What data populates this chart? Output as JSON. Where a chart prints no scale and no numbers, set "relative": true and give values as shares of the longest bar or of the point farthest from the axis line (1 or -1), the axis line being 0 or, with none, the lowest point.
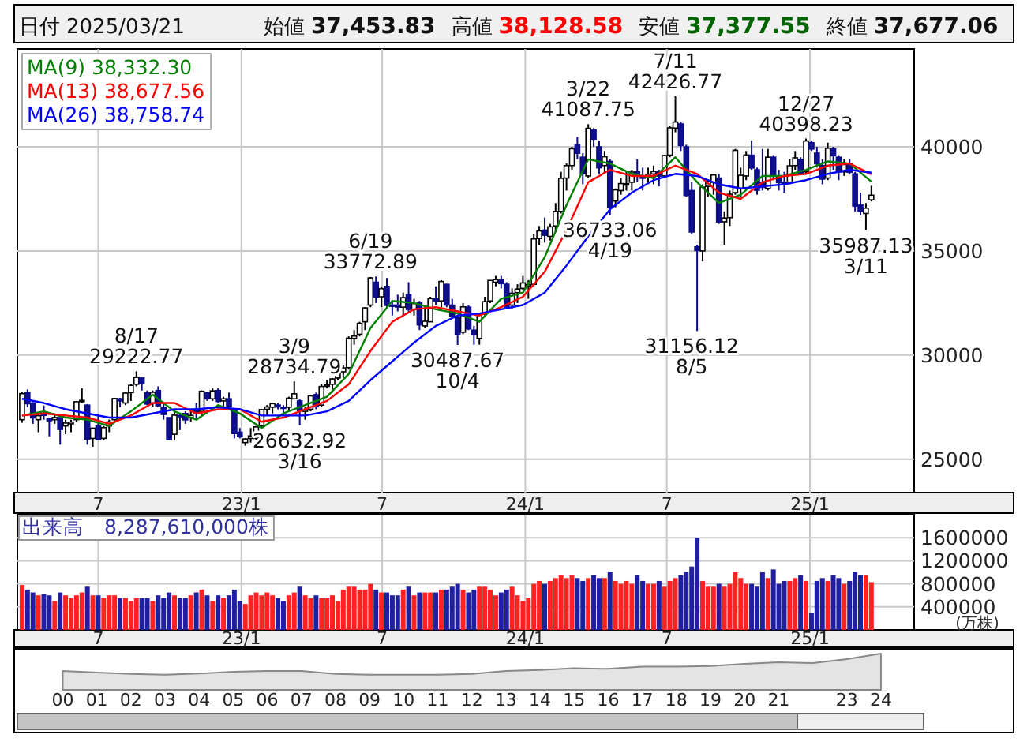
{
  "chart_data": [
    {
      "type": "candlestick",
      "xlim": [
        "2022-03-19",
        "2025-05-15"
      ],
      "ylim": [
        23400,
        44700
      ],
      "yticks": [
        25000,
        30000,
        35000,
        40000
      ],
      "grid": true,
      "legend": "top left",
      "xticks": [
        {
          "value": "2022-07-01",
          "label": "7"
        },
        {
          "value": "2023-01-01",
          "label": "23/1"
        },
        {
          "value": "2023-07-01",
          "label": "7"
        },
        {
          "value": "2024-01-01",
          "label": "24/1"
        },
        {
          "value": "2024-07-01",
          "label": "7"
        },
        {
          "value": "2025-01-01",
          "label": "25/1"
        }
      ],
      "x": [
        "2022-03-25",
        "2022-04-01",
        "2022-04-08",
        "2022-04-15",
        "2022-04-22",
        "2022-04-29",
        "2022-05-06",
        "2022-05-13",
        "2022-05-20",
        "2022-05-27",
        "2022-06-03",
        "2022-06-10",
        "2022-06-17",
        "2022-06-24",
        "2022-07-01",
        "2022-07-08",
        "2022-07-15",
        "2022-07-22",
        "2022-07-29",
        "2022-08-05",
        "2022-08-12",
        "2022-08-19",
        "2022-08-26",
        "2022-09-02",
        "2022-09-09",
        "2022-09-16",
        "2022-09-23",
        "2022-09-30",
        "2022-10-07",
        "2022-10-14",
        "2022-10-21",
        "2022-10-28",
        "2022-11-04",
        "2022-11-11",
        "2022-11-18",
        "2022-11-25",
        "2022-12-02",
        "2022-12-09",
        "2022-12-16",
        "2022-12-23",
        "2022-12-30",
        "2023-01-06",
        "2023-01-13",
        "2023-01-20",
        "2023-01-27",
        "2023-02-03",
        "2023-02-10",
        "2023-02-17",
        "2023-02-24",
        "2023-03-03",
        "2023-03-10",
        "2023-03-17",
        "2023-03-24",
        "2023-03-31",
        "2023-04-07",
        "2023-04-14",
        "2023-04-21",
        "2023-04-28",
        "2023-05-05",
        "2023-05-12",
        "2023-05-19",
        "2023-05-26",
        "2023-06-02",
        "2023-06-09",
        "2023-06-16",
        "2023-06-23",
        "2023-06-30",
        "2023-07-07",
        "2023-07-14",
        "2023-07-21",
        "2023-07-28",
        "2023-08-04",
        "2023-08-11",
        "2023-08-18",
        "2023-08-25",
        "2023-09-01",
        "2023-09-08",
        "2023-09-15",
        "2023-09-22",
        "2023-09-29",
        "2023-10-06",
        "2023-10-13",
        "2023-10-20",
        "2023-10-27",
        "2023-11-03",
        "2023-11-10",
        "2023-11-17",
        "2023-11-24",
        "2023-12-01",
        "2023-12-08",
        "2023-12-15",
        "2023-12-22",
        "2023-12-29",
        "2024-01-05",
        "2024-01-12",
        "2024-01-19",
        "2024-01-26",
        "2024-02-02",
        "2024-02-09",
        "2024-02-16",
        "2024-02-23",
        "2024-03-01",
        "2024-03-08",
        "2024-03-15",
        "2024-03-22",
        "2024-03-29",
        "2024-04-05",
        "2024-04-12",
        "2024-04-19",
        "2024-04-26",
        "2024-05-03",
        "2024-05-10",
        "2024-05-17",
        "2024-05-24",
        "2024-05-31",
        "2024-06-07",
        "2024-06-14",
        "2024-06-21",
        "2024-06-28",
        "2024-07-05",
        "2024-07-12",
        "2024-07-19",
        "2024-07-26",
        "2024-08-02",
        "2024-08-09",
        "2024-08-16",
        "2024-08-23",
        "2024-08-30",
        "2024-09-06",
        "2024-09-13",
        "2024-09-20",
        "2024-09-27",
        "2024-10-04",
        "2024-10-11",
        "2024-10-18",
        "2024-10-25",
        "2024-11-01",
        "2024-11-08",
        "2024-11-15",
        "2024-11-22",
        "2024-11-29",
        "2024-12-06",
        "2024-12-13",
        "2024-12-20",
        "2024-12-27",
        "2025-01-03",
        "2025-01-10",
        "2025-01-17",
        "2025-01-24",
        "2025-01-31",
        "2025-02-07",
        "2025-02-14",
        "2025-02-21",
        "2025-02-28",
        "2025-03-07",
        "2025-03-14",
        "2025-03-21"
      ],
      "ohlc": [
        [
          26900,
          28250,
          26750,
          28150
        ],
        [
          28200,
          28350,
          27500,
          27666
        ],
        [
          27700,
          27750,
          26700,
          26985
        ],
        [
          26900,
          27200,
          26300,
          27093
        ],
        [
          27200,
          27580,
          26900,
          27105
        ],
        [
          26950,
          27000,
          26100,
          26848
        ],
        [
          26900,
          27200,
          26700,
          27003
        ],
        [
          27000,
          27000,
          25700,
          26427
        ],
        [
          26600,
          26900,
          26200,
          26739
        ],
        [
          26700,
          26900,
          26300,
          26781
        ],
        [
          26900,
          27800,
          26800,
          27761
        ],
        [
          27800,
          28400,
          27700,
          27824
        ],
        [
          27600,
          27650,
          25700,
          25963
        ],
        [
          26000,
          26500,
          25600,
          26491
        ],
        [
          26600,
          27100,
          25900,
          25935
        ],
        [
          26000,
          26600,
          25900,
          26517
        ],
        [
          26600,
          26900,
          26300,
          26788
        ],
        [
          26900,
          27950,
          26800,
          27914
        ],
        [
          27900,
          27950,
          27500,
          27801
        ],
        [
          27700,
          28200,
          27600,
          28175
        ],
        [
          28200,
          28600,
          27800,
          28546
        ],
        [
          28600,
          29222.77,
          28500,
          28930
        ],
        [
          28900,
          28900,
          28300,
          28641
        ],
        [
          28200,
          28300,
          27600,
          27650
        ],
        [
          27700,
          28300,
          27500,
          28214
        ],
        [
          28300,
          28500,
          27500,
          27567
        ],
        [
          27500,
          27700,
          26900,
          27153
        ],
        [
          27000,
          27000,
          25900,
          25937
        ],
        [
          26200,
          27400,
          25900,
          27116
        ],
        [
          27100,
          27200,
          26400,
          27090
        ],
        [
          27200,
          27300,
          26700,
          26890
        ],
        [
          27000,
          27300,
          26800,
          27105
        ],
        [
          27400,
          27700,
          26900,
          27199
        ],
        [
          27300,
          28300,
          27100,
          28263
        ],
        [
          28200,
          28250,
          27800,
          27899
        ],
        [
          27900,
          28400,
          27800,
          28283
        ],
        [
          28300,
          28400,
          27700,
          27777
        ],
        [
          27800,
          28000,
          27500,
          27901
        ],
        [
          27900,
          28200,
          27400,
          27527
        ],
        [
          27400,
          27450,
          26000,
          26235
        ],
        [
          26300,
          26500,
          26000,
          26094
        ],
        [
          25800,
          26000,
          25650,
          25973
        ],
        [
          26000,
          26500,
          25800,
          26119
        ],
        [
          26000,
          26600,
          25900,
          26553
        ],
        [
          26600,
          27400,
          26500,
          27382
        ],
        [
          27400,
          27600,
          27100,
          27509
        ],
        [
          27500,
          27700,
          27200,
          27670
        ],
        [
          27600,
          27700,
          27400,
          27513
        ],
        [
          27500,
          27600,
          27100,
          27453
        ],
        [
          27500,
          28000,
          27300,
          27927
        ],
        [
          27900,
          28734.79,
          27900,
          28143
        ],
        [
          27800,
          27900,
          26632.92,
          27333
        ],
        [
          27300,
          27500,
          26900,
          27385
        ],
        [
          27400,
          28100,
          27300,
          28041
        ],
        [
          28100,
          28200,
          27400,
          27518
        ],
        [
          27600,
          28600,
          27500,
          28493
        ],
        [
          28500,
          28800,
          28400,
          28564
        ],
        [
          28600,
          28900,
          28200,
          28856
        ],
        [
          28900,
          29300,
          28800,
          29157
        ],
        [
          29200,
          29500,
          28900,
          29388
        ],
        [
          29400,
          30900,
          29300,
          30808
        ],
        [
          30800,
          31200,
          30500,
          30916
        ],
        [
          31000,
          31600,
          30900,
          31524
        ],
        [
          31600,
          32300,
          31200,
          32265
        ],
        [
          32400,
          33750,
          32300,
          33706
        ],
        [
          33500,
          33772.89,
          32500,
          32781
        ],
        [
          32800,
          33300,
          32300,
          33189
        ],
        [
          33300,
          33700,
          32300,
          32388
        ],
        [
          32400,
          32600,
          31900,
          32391
        ],
        [
          32400,
          32900,
          32100,
          32304
        ],
        [
          32300,
          33000,
          31900,
          32759
        ],
        [
          32900,
          33500,
          32000,
          32192
        ],
        [
          32200,
          32700,
          31900,
          32473
        ],
        [
          32500,
          32600,
          31200,
          31450
        ],
        [
          31400,
          32300,
          31300,
          31624
        ],
        [
          31600,
          32800,
          31600,
          32710
        ],
        [
          32700,
          33300,
          32400,
          32606
        ],
        [
          32600,
          33600,
          32300,
          33533
        ],
        [
          33400,
          33400,
          32300,
          32402
        ],
        [
          32400,
          32700,
          31800,
          31857
        ],
        [
          31800,
          31900,
          30487.67,
          30994
        ],
        [
          31100,
          32500,
          31000,
          32315
        ],
        [
          32300,
          32400,
          31200,
          31259
        ],
        [
          31200,
          31400,
          30500,
          30991
        ],
        [
          30800,
          32000,
          30500,
          31950
        ],
        [
          32000,
          32800,
          31900,
          32568
        ],
        [
          32600,
          33600,
          32500,
          33585
        ],
        [
          33500,
          33800,
          33300,
          33625
        ],
        [
          33600,
          33800,
          33200,
          33431
        ],
        [
          33400,
          33500,
          32200,
          32307
        ],
        [
          32400,
          33200,
          32200,
          32970
        ],
        [
          33000,
          33400,
          32500,
          33169
        ],
        [
          33200,
          33800,
          33100,
          33464
        ],
        [
          33300,
          33600,
          32700,
          33377
        ],
        [
          33400,
          35800,
          33300,
          35577
        ],
        [
          35600,
          36200,
          35300,
          35963
        ],
        [
          36000,
          36600,
          35400,
          35751
        ],
        [
          35700,
          36300,
          35500,
          36158
        ],
        [
          36200,
          37300,
          35900,
          36897
        ],
        [
          36900,
          38800,
          36800,
          38487
        ],
        [
          38500,
          39200,
          37900,
          39098
        ],
        [
          39100,
          40000,
          38900,
          39910
        ],
        [
          40100,
          40472,
          39400,
          39688
        ],
        [
          39500,
          39700,
          38200,
          38707
        ],
        [
          38600,
          41087.75,
          38500,
          40888
        ],
        [
          40800,
          40900,
          40000,
          40369
        ],
        [
          40000,
          40300,
          38700,
          38992
        ],
        [
          39100,
          39800,
          38700,
          39523
        ],
        [
          39300,
          39400,
          36733.06,
          37068
        ],
        [
          37400,
          38000,
          37100,
          37934
        ],
        [
          37900,
          38500,
          37700,
          38236
        ],
        [
          38200,
          38800,
          37900,
          38229
        ],
        [
          38300,
          38900,
          37900,
          38787
        ],
        [
          38800,
          39400,
          38300,
          38646
        ],
        [
          38600,
          39000,
          37900,
          38487
        ],
        [
          38600,
          39000,
          38300,
          38683
        ],
        [
          38700,
          39100,
          38200,
          38814
        ],
        [
          38800,
          38900,
          38100,
          38596
        ],
        [
          38600,
          39600,
          38500,
          39583
        ],
        [
          39600,
          41000,
          39500,
          40912
        ],
        [
          40900,
          42426.77,
          40700,
          41190
        ],
        [
          41100,
          41200,
          39800,
          40063
        ],
        [
          40000,
          40100,
          37600,
          37667
        ],
        [
          37900,
          38300,
          35800,
          35909
        ],
        [
          35200,
          35300,
          31156.12,
          35025
        ],
        [
          35000,
          38200,
          34500,
          38062
        ],
        [
          38100,
          38400,
          37600,
          38364
        ],
        [
          38300,
          38700,
          37700,
          38647
        ],
        [
          38500,
          38700,
          36300,
          36391
        ],
        [
          36400,
          36900,
          35300,
          36581
        ],
        [
          36600,
          37900,
          36200,
          37723
        ],
        [
          37800,
          39900,
          37700,
          39829
        ],
        [
          38000,
          39000,
          37600,
          38635
        ],
        [
          38600,
          39800,
          38400,
          39605
        ],
        [
          39600,
          40300,
          38900,
          38981
        ],
        [
          38900,
          39000,
          37700,
          37913
        ],
        [
          38300,
          39900,
          37900,
          38053
        ],
        [
          38000,
          39900,
          37900,
          39500
        ],
        [
          39500,
          39600,
          38400,
          38642
        ],
        [
          38600,
          38900,
          37900,
          38283
        ],
        [
          38300,
          38800,
          37800,
          38208
        ],
        [
          38300,
          39400,
          38200,
          39091
        ],
        [
          39100,
          39800,
          38900,
          39470
        ],
        [
          39400,
          39500,
          38700,
          38701
        ],
        [
          38800,
          40398.23,
          38700,
          40281
        ],
        [
          40200,
          40300,
          39800,
          39894
        ],
        [
          39700,
          40000,
          39000,
          39190
        ],
        [
          39100,
          39400,
          38200,
          38451
        ],
        [
          38500,
          40200,
          38400,
          39931
        ],
        [
          39900,
          40000,
          38900,
          39572
        ],
        [
          39500,
          39600,
          38400,
          38787
        ],
        [
          38800,
          39400,
          38600,
          39149
        ],
        [
          39200,
          39400,
          38700,
          38776
        ],
        [
          38700,
          38800,
          36900,
          37155
        ],
        [
          37200,
          37800,
          36700,
          36887
        ],
        [
          36800,
          37300,
          35987.13,
          37053
        ],
        [
          37453.83,
          38128.58,
          37377.55,
          37677.06
        ]
      ],
      "series": [
        {
          "name": "MA(9) 38,332.30",
          "type": "line",
          "color": "#008000",
          "x": [
            "2022-03-25",
            "2022-04-22",
            "2022-05-20",
            "2022-06-17",
            "2022-07-15",
            "2022-08-12",
            "2022-09-09",
            "2022-10-07",
            "2022-11-04",
            "2022-12-02",
            "2022-12-30",
            "2023-01-27",
            "2023-02-24",
            "2023-03-24",
            "2023-04-21",
            "2023-05-19",
            "2023-06-16",
            "2023-07-14",
            "2023-08-11",
            "2023-09-08",
            "2023-10-06",
            "2023-11-03",
            "2023-12-01",
            "2023-12-29",
            "2024-01-26",
            "2024-02-23",
            "2024-03-22",
            "2024-04-19",
            "2024-05-17",
            "2024-06-14",
            "2024-07-12",
            "2024-08-09",
            "2024-09-06",
            "2024-10-04",
            "2024-11-01",
            "2024-11-29",
            "2024-12-27",
            "2025-01-24",
            "2025-02-21",
            "2025-03-21"
          ],
          "values": [
            27100,
            27300,
            27000,
            26900,
            26600,
            27300,
            28100,
            27300,
            26900,
            27600,
            27200,
            26500,
            27200,
            27600,
            28000,
            29100,
            31300,
            32600,
            32500,
            32200,
            32000,
            31600,
            32700,
            33000,
            34700,
            37200,
            39400,
            39200,
            38700,
            38500,
            39500,
            38300,
            37300,
            37700,
            38600,
            38600,
            38900,
            39300,
            39200,
            38330
          ]
        },
        {
          "name": "MA(13) 38,677.56",
          "type": "line",
          "color": "#ff0000",
          "x": [
            "2022-03-25",
            "2022-04-22",
            "2022-05-20",
            "2022-06-17",
            "2022-07-15",
            "2022-08-12",
            "2022-09-09",
            "2022-10-07",
            "2022-11-04",
            "2022-12-02",
            "2022-12-30",
            "2023-01-27",
            "2023-02-24",
            "2023-03-24",
            "2023-04-21",
            "2023-05-19",
            "2023-06-16",
            "2023-07-14",
            "2023-08-11",
            "2023-09-08",
            "2023-10-06",
            "2023-11-03",
            "2023-12-01",
            "2023-12-29",
            "2024-01-26",
            "2024-02-23",
            "2024-03-22",
            "2024-04-19",
            "2024-05-17",
            "2024-06-14",
            "2024-07-12",
            "2024-08-09",
            "2024-09-06",
            "2024-10-04",
            "2024-11-01",
            "2024-11-29",
            "2024-12-27",
            "2025-01-24",
            "2025-02-21",
            "2025-03-21"
          ],
          "values": [
            27100,
            27200,
            27100,
            27000,
            26700,
            27100,
            27700,
            27700,
            27200,
            27400,
            27400,
            26800,
            27000,
            27400,
            27800,
            28600,
            30200,
            31600,
            32200,
            32300,
            32100,
            31900,
            32300,
            32800,
            34000,
            36000,
            38300,
            38900,
            38600,
            38600,
            39100,
            38700,
            37800,
            37500,
            38300,
            38600,
            38700,
            39100,
            39200,
            38680
          ]
        },
        {
          "name": "MA(26) 38,758.74",
          "type": "line",
          "color": "#0000ff",
          "x": [
            "2022-03-25",
            "2022-04-22",
            "2022-05-20",
            "2022-06-17",
            "2022-07-15",
            "2022-08-12",
            "2022-09-09",
            "2022-10-07",
            "2022-11-04",
            "2022-12-02",
            "2022-12-30",
            "2023-01-27",
            "2023-02-24",
            "2023-03-24",
            "2023-04-21",
            "2023-05-19",
            "2023-06-16",
            "2023-07-14",
            "2023-08-11",
            "2023-09-08",
            "2023-10-06",
            "2023-11-03",
            "2023-12-01",
            "2023-12-29",
            "2024-01-26",
            "2024-02-23",
            "2024-03-22",
            "2024-04-19",
            "2024-05-17",
            "2024-06-14",
            "2024-07-12",
            "2024-08-09",
            "2024-09-06",
            "2024-10-04",
            "2024-11-01",
            "2024-11-29",
            "2024-12-27",
            "2025-01-24",
            "2025-02-21",
            "2025-03-21"
          ],
          "values": [
            27900,
            27700,
            27400,
            27200,
            27000,
            27000,
            27200,
            27400,
            27400,
            27500,
            27400,
            27100,
            27100,
            27100,
            27300,
            27800,
            28800,
            29700,
            30600,
            31400,
            31900,
            32000,
            32200,
            32400,
            33000,
            34300,
            35700,
            37000,
            37800,
            38400,
            38700,
            38600,
            38200,
            38000,
            38100,
            38200,
            38400,
            38700,
            38900,
            38760
          ]
        }
      ],
      "annotations": [
        "日付",
        "2025/03/21",
        "始値",
        "37,453.83",
        "高値",
        "38,128.58",
        "安値",
        "37,377.55",
        "終値",
        "37,677.06",
        {
          "text": "8/17 29222.77",
          "x": "2022-08-17",
          "y": 29222.77
        },
        {
          "text": "3/9 28734.79",
          "x": "2023-03-09",
          "y": 28734.79
        },
        {
          "text": "26632.92 3/16",
          "x": "2023-03-16",
          "y": 26632.92
        },
        {
          "text": "6/19 33772.89",
          "x": "2023-06-19",
          "y": 33772.89
        },
        {
          "text": "30487.67 10/4",
          "x": "2023-10-04",
          "y": 30487.67
        },
        {
          "text": "3/22 41087.75",
          "x": "2024-03-22",
          "y": 41087.75
        },
        {
          "text": "36733.06 4/19",
          "x": "2024-04-19",
          "y": 36733.06
        },
        {
          "text": "7/11 42426.77",
          "x": "2024-07-11",
          "y": 42426.77
        },
        {
          "text": "31156.12 8/5",
          "x": "2024-08-05",
          "y": 31156.12
        },
        {
          "text": "12/27 40398.23",
          "x": "2024-12-27",
          "y": 40398.23
        },
        {
          "text": "35987.13 3/11",
          "x": "2025-03-11",
          "y": 35987.13
        }
      ]
    },
    {
      "type": "bar",
      "title": "出来高　8,287,610,000株",
      "ylabel": "(万株)",
      "xlim": [
        "2022-03-19",
        "2025-05-15"
      ],
      "ylim": [
        0,
        2000000
      ],
      "yticks": [
        400000,
        800000,
        1200000,
        1600000
      ],
      "grid": true,
      "xticks": [
        {
          "value": "2022-07-01",
          "label": "7"
        },
        {
          "value": "2023-01-01",
          "label": "23/1"
        },
        {
          "value": "2023-07-01",
          "label": "7"
        },
        {
          "value": "2024-01-01",
          "label": "24/1"
        },
        {
          "value": "2024-07-01",
          "label": "7"
        },
        {
          "value": "2025-01-01",
          "label": "25/1"
        }
      ],
      "x": [
        "2022-03-25",
        "2022-04-01",
        "2022-04-08",
        "2022-04-15",
        "2022-04-22",
        "2022-04-29",
        "2022-05-06",
        "2022-05-13",
        "2022-05-20",
        "2022-05-27",
        "2022-06-03",
        "2022-06-10",
        "2022-06-17",
        "2022-06-24",
        "2022-07-01",
        "2022-07-08",
        "2022-07-15",
        "2022-07-22",
        "2022-07-29",
        "2022-08-05",
        "2022-08-12",
        "2022-08-19",
        "2022-08-26",
        "2022-09-02",
        "2022-09-09",
        "2022-09-16",
        "2022-09-23",
        "2022-09-30",
        "2022-10-07",
        "2022-10-14",
        "2022-10-21",
        "2022-10-28",
        "2022-11-04",
        "2022-11-11",
        "2022-11-18",
        "2022-11-25",
        "2022-12-02",
        "2022-12-09",
        "2022-12-16",
        "2022-12-23",
        "2022-12-30",
        "2023-01-06",
        "2023-01-13",
        "2023-01-20",
        "2023-01-27",
        "2023-02-03",
        "2023-02-10",
        "2023-02-17",
        "2023-02-24",
        "2023-03-03",
        "2023-03-10",
        "2023-03-17",
        "2023-03-24",
        "2023-03-31",
        "2023-04-07",
        "2023-04-14",
        "2023-04-21",
        "2023-04-28",
        "2023-05-05",
        "2023-05-12",
        "2023-05-19",
        "2023-05-26",
        "2023-06-02",
        "2023-06-09",
        "2023-06-16",
        "2023-06-23",
        "2023-06-30",
        "2023-07-07",
        "2023-07-14",
        "2023-07-21",
        "2023-07-28",
        "2023-08-04",
        "2023-08-11",
        "2023-08-18",
        "2023-08-25",
        "2023-09-01",
        "2023-09-08",
        "2023-09-15",
        "2023-09-22",
        "2023-09-29",
        "2023-10-06",
        "2023-10-13",
        "2023-10-20",
        "2023-10-27",
        "2023-11-03",
        "2023-11-10",
        "2023-11-17",
        "2023-11-24",
        "2023-12-01",
        "2023-12-08",
        "2023-12-15",
        "2023-12-22",
        "2023-12-29",
        "2024-01-05",
        "2024-01-12",
        "2024-01-19",
        "2024-01-26",
        "2024-02-02",
        "2024-02-09",
        "2024-02-16",
        "2024-02-23",
        "2024-03-01",
        "2024-03-08",
        "2024-03-15",
        "2024-03-22",
        "2024-03-29",
        "2024-04-05",
        "2024-04-12",
        "2024-04-19",
        "2024-04-26",
        "2024-05-03",
        "2024-05-10",
        "2024-05-17",
        "2024-05-24",
        "2024-05-31",
        "2024-06-07",
        "2024-06-14",
        "2024-06-21",
        "2024-06-28",
        "2024-07-05",
        "2024-07-12",
        "2024-07-19",
        "2024-07-26",
        "2024-08-02",
        "2024-08-09",
        "2024-08-16",
        "2024-08-23",
        "2024-08-30",
        "2024-09-06",
        "2024-09-13",
        "2024-09-20",
        "2024-09-27",
        "2024-10-04",
        "2024-10-11",
        "2024-10-18",
        "2024-10-25",
        "2024-11-01",
        "2024-11-08",
        "2024-11-15",
        "2024-11-22",
        "2024-11-29",
        "2024-12-06",
        "2024-12-13",
        "2024-12-20",
        "2024-12-27",
        "2025-01-03",
        "2025-01-10",
        "2025-01-17",
        "2025-01-24",
        "2025-01-31",
        "2025-02-07",
        "2025-02-14",
        "2025-02-21",
        "2025-02-28",
        "2025-03-07",
        "2025-03-14",
        "2025-03-21"
      ],
      "values": [
        780000,
        700000,
        650000,
        600000,
        620000,
        600000,
        500000,
        650000,
        600000,
        550000,
        600000,
        650000,
        750000,
        600000,
        600000,
        550000,
        600000,
        600000,
        550000,
        550000,
        500000,
        550000,
        550000,
        550000,
        500000,
        600000,
        550000,
        650000,
        600000,
        550000,
        550000,
        600000,
        650000,
        700000,
        600000,
        500000,
        600000,
        550000,
        600000,
        700000,
        500000,
        450000,
        600000,
        650000,
        600000,
        650000,
        600000,
        550000,
        500000,
        600000,
        650000,
        750000,
        600000,
        550000,
        600000,
        550000,
        550000,
        600000,
        500000,
        700000,
        750000,
        750000,
        700000,
        700000,
        800000,
        700000,
        650000,
        650000,
        600000,
        600000,
        700000,
        750000,
        600000,
        650000,
        650000,
        650000,
        650000,
        700000,
        700000,
        750000,
        800000,
        700000,
        650000,
        700000,
        750000,
        750000,
        700000,
        600000,
        650000,
        700000,
        750000,
        600000,
        500000,
        550000,
        800000,
        850000,
        800000,
        850000,
        900000,
        950000,
        900000,
        950000,
        900000,
        850000,
        900000,
        950000,
        900000,
        900000,
        1000000,
        850000,
        800000,
        850000,
        800000,
        950000,
        850000,
        800000,
        800000,
        850000,
        750000,
        850000,
        900000,
        950000,
        1000000,
        1100000,
        1600000,
        850000,
        750000,
        750000,
        800000,
        750000,
        800000,
        1000000,
        900000,
        800000,
        800000,
        750000,
        1000000,
        900000,
        1050000,
        800000,
        850000,
        850000,
        900000,
        950000,
        850000,
        300000,
        850000,
        900000,
        850000,
        950000,
        900000,
        800000,
        850000,
        1000000,
        950000,
        950000,
        830000
      ],
      "colors": [
        "#ff2222",
        "#1f1f9f",
        "#1f1f9f",
        "#ff2222",
        "#1f1f9f",
        "#1f1f9f",
        "#ff2222",
        "#1f1f9f",
        "#ff2222",
        "#ff2222",
        "#ff2222",
        "#ff2222",
        "#1f1f9f",
        "#ff2222",
        "#1f1f9f",
        "#ff2222",
        "#ff2222",
        "#ff2222",
        "#1f1f9f",
        "#ff2222",
        "#ff2222",
        "#ff2222",
        "#1f1f9f",
        "#1f1f9f",
        "#ff2222",
        "#1f1f9f",
        "#1f1f9f",
        "#1f1f9f",
        "#ff2222",
        "#1f1f9f",
        "#1f1f9f",
        "#ff2222",
        "#1f1f9f",
        "#ff2222",
        "#1f1f9f",
        "#ff2222",
        "#1f1f9f",
        "#ff2222",
        "#1f1f9f",
        "#1f1f9f",
        "#1f1f9f",
        "#ff2222",
        "#ff2222",
        "#ff2222",
        "#ff2222",
        "#ff2222",
        "#ff2222",
        "#1f1f9f",
        "#1f1f9f",
        "#ff2222",
        "#ff2222",
        "#1f1f9f",
        "#ff2222",
        "#ff2222",
        "#1f1f9f",
        "#ff2222",
        "#ff2222",
        "#ff2222",
        "#ff2222",
        "#ff2222",
        "#ff2222",
        "#ff2222",
        "#ff2222",
        "#ff2222",
        "#ff2222",
        "#1f1f9f",
        "#ff2222",
        "#1f1f9f",
        "#1f1f9f",
        "#1f1f9f",
        "#ff2222",
        "#1f1f9f",
        "#ff2222",
        "#1f1f9f",
        "#ff2222",
        "#ff2222",
        "#1f1f9f",
        "#ff2222",
        "#1f1f9f",
        "#1f1f9f",
        "#1f1f9f",
        "#ff2222",
        "#1f1f9f",
        "#1f1f9f",
        "#ff2222",
        "#ff2222",
        "#ff2222",
        "#ff2222",
        "#1f1f9f",
        "#1f1f9f",
        "#ff2222",
        "#ff2222",
        "#ff2222",
        "#ff2222",
        "#ff2222",
        "#ff2222",
        "#1f1f9f",
        "#ff2222",
        "#ff2222",
        "#ff2222",
        "#ff2222",
        "#ff2222",
        "#1f1f9f",
        "#1f1f9f",
        "#ff2222",
        "#1f1f9f",
        "#1f1f9f",
        "#ff2222",
        "#1f1f9f",
        "#ff2222",
        "#ff2222",
        "#ff2222",
        "#ff2222",
        "#1f1f9f",
        "#1f1f9f",
        "#ff2222",
        "#ff2222",
        "#1f1f9f",
        "#ff2222",
        "#ff2222",
        "#ff2222",
        "#1f1f9f",
        "#1f1f9f",
        "#1f1f9f",
        "#1f1f9f",
        "#ff2222",
        "#ff2222",
        "#ff2222",
        "#1f1f9f",
        "#ff2222",
        "#ff2222",
        "#ff2222",
        "#ff2222",
        "#ff2222",
        "#1f1f9f",
        "#1f1f9f",
        "#1f1f9f",
        "#ff2222",
        "#1f1f9f",
        "#1f1f9f",
        "#1f1f9f",
        "#ff2222",
        "#ff2222",
        "#1f1f9f",
        "#ff2222",
        "#1f1f9f",
        "#1f1f9f",
        "#1f1f9f",
        "#ff2222",
        "#1f1f9f",
        "#1f1f9f",
        "#ff2222",
        "#1f1f9f",
        "#1f1f9f",
        "#1f1f9f",
        "#ff2222",
        "#ff2222"
      ]
    },
    {
      "type": "area",
      "relative": true,
      "color": "#888888",
      "categories": [
        "00",
        "01",
        "02",
        "03",
        "04",
        "05",
        "06",
        "07",
        "08",
        "09",
        "10",
        "11",
        "12",
        "13",
        "14",
        "15",
        "16",
        "17",
        "18",
        "19",
        "20",
        "21",
        null,
        "23",
        "24"
      ],
      "values": [
        0.52,
        0.48,
        0.44,
        0.42,
        0.45,
        0.5,
        0.52,
        0.52,
        0.44,
        0.42,
        0.42,
        0.42,
        0.44,
        0.52,
        0.55,
        0.6,
        0.58,
        0.64,
        0.64,
        0.66,
        0.72,
        0.76,
        0.74,
        0.85,
        1
      ]
    }
  ]
}
